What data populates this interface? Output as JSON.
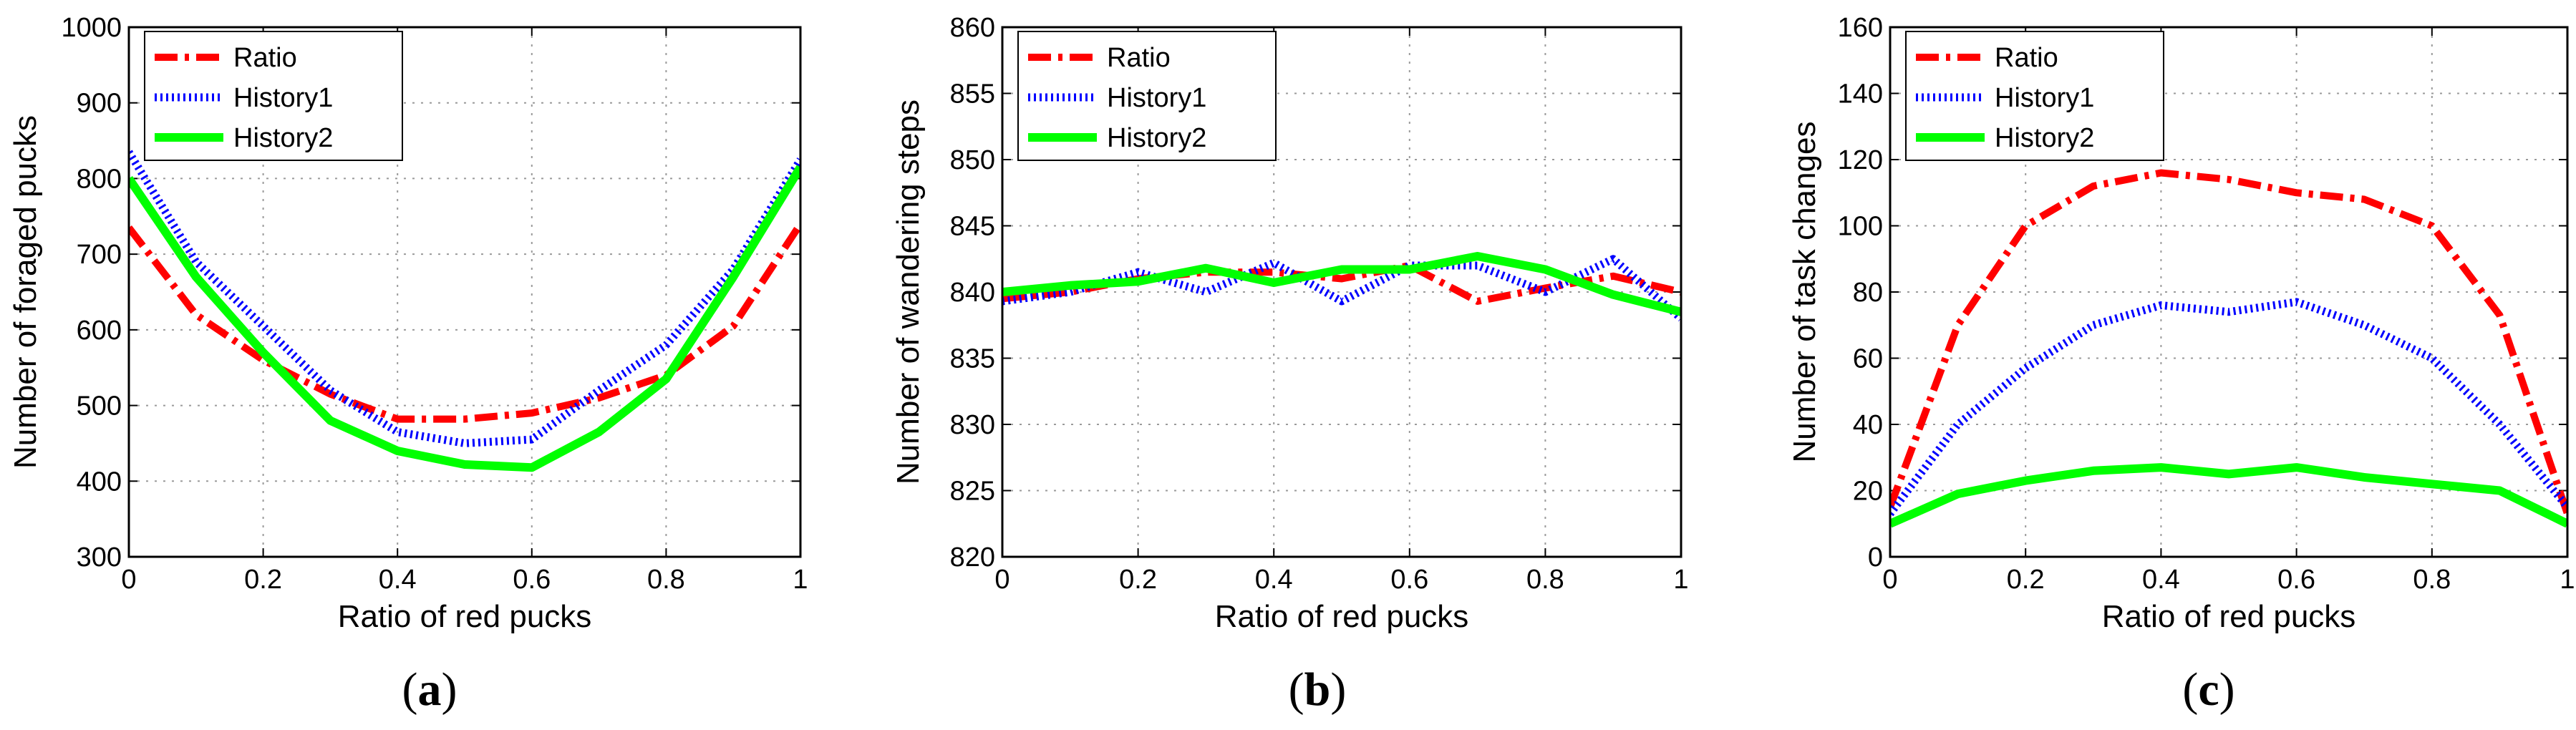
{
  "figure": {
    "panels": [
      {
        "label_open": "(",
        "label_letter": "a",
        "label_close": ")"
      },
      {
        "label_open": "(",
        "label_letter": "b",
        "label_close": ")"
      },
      {
        "label_open": "(",
        "label_letter": "c",
        "label_close": ")"
      }
    ]
  },
  "chart_data": [
    {
      "type": "line",
      "xlabel": "Ratio of red pucks",
      "ylabel": "Number of foraged pucks",
      "xlim": [
        0,
        1
      ],
      "ylim": [
        300,
        1000
      ],
      "xticks": [
        0,
        0.2,
        0.4,
        0.6,
        0.8,
        1
      ],
      "xtick_labels": [
        "0",
        "0.2",
        "0.4",
        "0.6",
        "0.8",
        "1"
      ],
      "yticks": [
        300,
        400,
        500,
        600,
        700,
        800,
        900,
        1000
      ],
      "ytick_labels": [
        "300",
        "400",
        "500",
        "600",
        "700",
        "800",
        "900",
        "1000"
      ],
      "grid": true,
      "legend_position": "top-left",
      "x": [
        0,
        0.1,
        0.2,
        0.3,
        0.4,
        0.5,
        0.6,
        0.7,
        0.8,
        0.9,
        1
      ],
      "series": [
        {
          "name": "Ratio",
          "color": "#ff0000",
          "style": "dashdot",
          "values": [
            735,
            620,
            560,
            515,
            482,
            482,
            490,
            510,
            540,
            605,
            740
          ]
        },
        {
          "name": "History1",
          "color": "#0000ff",
          "style": "dotted",
          "values": [
            835,
            690,
            605,
            520,
            465,
            450,
            455,
            520,
            580,
            680,
            825
          ]
        },
        {
          "name": "History2",
          "color": "#00ff00",
          "style": "solid",
          "values": [
            800,
            670,
            570,
            480,
            440,
            422,
            418,
            465,
            535,
            670,
            815
          ]
        }
      ]
    },
    {
      "type": "line",
      "xlabel": "Ratio of red pucks",
      "ylabel": "Number of wandering steps",
      "xlim": [
        0,
        1
      ],
      "ylim": [
        820,
        860
      ],
      "xticks": [
        0,
        0.2,
        0.4,
        0.6,
        0.8,
        1
      ],
      "xtick_labels": [
        "0",
        "0.2",
        "0.4",
        "0.6",
        "0.8",
        "1"
      ],
      "yticks": [
        820,
        825,
        830,
        835,
        840,
        845,
        850,
        855,
        860
      ],
      "ytick_labels": [
        "820",
        "825",
        "830",
        "835",
        "840",
        "845",
        "850",
        "855",
        "860"
      ],
      "grid": true,
      "legend_position": "top-left",
      "x": [
        0,
        0.1,
        0.2,
        0.3,
        0.4,
        0.5,
        0.6,
        0.7,
        0.8,
        0.9,
        1
      ],
      "series": [
        {
          "name": "Ratio",
          "color": "#ff0000",
          "style": "dashdot",
          "values": [
            839.5,
            840.0,
            841.0,
            841.5,
            841.5,
            841.0,
            842.0,
            839.3,
            840.3,
            841.2,
            840.0
          ]
        },
        {
          "name": "History1",
          "color": "#0000ff",
          "style": "dotted",
          "values": [
            839.3,
            840.0,
            841.5,
            840.0,
            842.2,
            839.3,
            842.0,
            842.0,
            840.0,
            842.5,
            838.0
          ]
        },
        {
          "name": "History2",
          "color": "#00ff00",
          "style": "solid",
          "values": [
            840.0,
            840.5,
            840.8,
            841.8,
            840.7,
            841.7,
            841.7,
            842.7,
            841.7,
            839.8,
            838.5
          ]
        }
      ]
    },
    {
      "type": "line",
      "xlabel": "Ratio of red pucks",
      "ylabel": "Number of task changes",
      "xlim": [
        0,
        1
      ],
      "ylim": [
        0,
        160
      ],
      "xticks": [
        0,
        0.2,
        0.4,
        0.6,
        0.8,
        1
      ],
      "xtick_labels": [
        "0",
        "0.2",
        "0.4",
        "0.6",
        "0.8",
        "1"
      ],
      "yticks": [
        0,
        20,
        40,
        60,
        80,
        100,
        120,
        140,
        160
      ],
      "ytick_labels": [
        "0",
        "20",
        "40",
        "60",
        "80",
        "100",
        "120",
        "140",
        "160"
      ],
      "grid": true,
      "legend_position": "top-left",
      "x": [
        0,
        0.1,
        0.2,
        0.3,
        0.4,
        0.5,
        0.6,
        0.7,
        0.8,
        0.9,
        1
      ],
      "series": [
        {
          "name": "Ratio",
          "color": "#ff0000",
          "style": "dashdot",
          "values": [
            15,
            70,
            100,
            112,
            116,
            114,
            110,
            108,
            100,
            73,
            13
          ]
        },
        {
          "name": "History1",
          "color": "#0000ff",
          "style": "dotted",
          "values": [
            13,
            40,
            57,
            70,
            76,
            74,
            77,
            70,
            60,
            40,
            15
          ]
        },
        {
          "name": "History2",
          "color": "#00ff00",
          "style": "solid",
          "values": [
            10,
            19,
            23,
            26,
            27,
            25,
            27,
            24,
            22,
            20,
            10
          ]
        }
      ]
    }
  ]
}
